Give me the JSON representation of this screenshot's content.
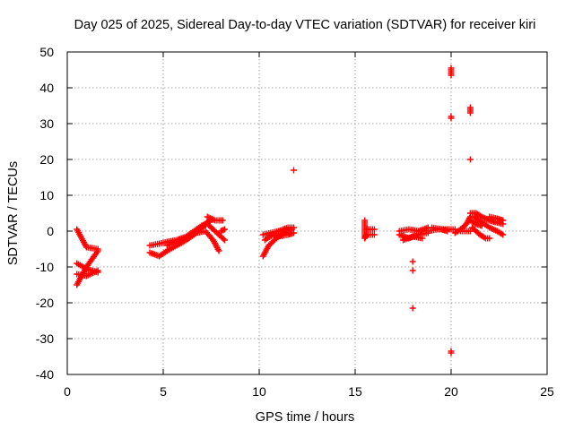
{
  "chart_data": {
    "type": "scatter",
    "title": "Day 025 of 2025, Sidereal Day-to-day VTEC variation (SDTVAR) for receiver kiri",
    "xlabel": "GPS time / hours",
    "ylabel": "SDTVAR / TECUs",
    "xlim": [
      0,
      25
    ],
    "ylim": [
      -40,
      50
    ],
    "xticks": [
      0,
      5,
      10,
      15,
      20,
      25
    ],
    "yticks": [
      -40,
      -30,
      -20,
      -10,
      0,
      10,
      20,
      30,
      40,
      50
    ],
    "xtick_labels": [
      "0",
      "5",
      "10",
      "15",
      "20",
      "25"
    ],
    "ytick_labels": [
      "-40",
      "-30",
      "-20",
      "-10",
      "0",
      "10",
      "20",
      "30",
      "40",
      "50"
    ],
    "grid": true,
    "marker": "plus",
    "color": "#ff0000",
    "segments": [
      {
        "x": [
          0.5,
          1.0,
          1.6
        ],
        "y": [
          0.5,
          -4.5,
          -5.0
        ]
      },
      {
        "x": [
          0.5,
          1.0,
          1.6
        ],
        "y": [
          -15.0,
          -10.0,
          -5.5
        ]
      },
      {
        "x": [
          0.5,
          1.0,
          1.6
        ],
        "y": [
          -9.0,
          -10.5,
          -11.5
        ]
      },
      {
        "x": [
          0.5,
          1.0,
          1.6
        ],
        "y": [
          -12.0,
          -12.5,
          -11.0
        ]
      },
      {
        "x": [
          4.3,
          4.8,
          5.2,
          5.7,
          6.2,
          6.6,
          7.0,
          7.4
        ],
        "y": [
          -4.0,
          -3.5,
          -3.0,
          -2.5,
          -1.5,
          0.0,
          1.5,
          2.5
        ]
      },
      {
        "x": [
          4.3,
          4.8,
          5.2,
          5.7,
          6.2,
          6.6,
          7.0,
          7.4
        ],
        "y": [
          -6.0,
          -7.0,
          -5.5,
          -4.0,
          -2.5,
          -1.0,
          1.0,
          3.0
        ]
      },
      {
        "x": [
          5.2,
          5.7,
          6.2,
          6.7,
          7.2,
          7.6,
          7.9
        ],
        "y": [
          -4.0,
          -3.0,
          -2.0,
          -0.5,
          0.0,
          -2.5,
          -5.5
        ]
      },
      {
        "x": [
          6.3,
          6.8,
          7.3,
          7.7,
          8.0,
          8.2
        ],
        "y": [
          -2.0,
          0.5,
          2.0,
          0.0,
          -1.5,
          -2.5
        ]
      },
      {
        "x": [
          7.3,
          7.7,
          8.1
        ],
        "y": [
          4.0,
          3.0,
          3.0
        ]
      },
      {
        "x": [
          8.0,
          8.2
        ],
        "y": [
          0.0,
          0.5
        ]
      },
      {
        "x": [
          10.2,
          10.5,
          10.9,
          11.3,
          11.7
        ],
        "y": [
          -7.0,
          -4.0,
          -2.0,
          -0.5,
          0.5
        ]
      },
      {
        "x": [
          10.2,
          10.6,
          11.0,
          11.5,
          11.8
        ],
        "y": [
          -1.0,
          -0.5,
          0.0,
          1.0,
          1.0
        ]
      },
      {
        "x": [
          10.3,
          10.7,
          11.0,
          11.5,
          11.8
        ],
        "y": [
          -2.5,
          -1.0,
          -1.5,
          -1.0,
          -0.5
        ]
      },
      {
        "x": [
          11.8
        ],
        "y": [
          17.0
        ]
      },
      {
        "x": [
          15.5,
          15.5,
          15.5,
          15.6,
          16.0
        ],
        "y": [
          3.0,
          1.0,
          -2.0,
          -1.0,
          -1.0
        ]
      },
      {
        "x": [
          15.6,
          16.0
        ],
        "y": [
          0.5,
          0.5
        ]
      },
      {
        "x": [
          17.3,
          17.8,
          18.3,
          18.8
        ],
        "y": [
          -1.0,
          -2.0,
          -1.0,
          -0.5
        ]
      },
      {
        "x": [
          17.3,
          17.8,
          18.3,
          18.8
        ],
        "y": [
          0.0,
          0.5,
          0.0,
          1.0
        ]
      },
      {
        "x": [
          17.5,
          18.0,
          18.5
        ],
        "y": [
          -2.5,
          -1.5,
          -2.0
        ]
      },
      {
        "x": [
          18.8,
          19.3,
          19.8,
          20.2
        ],
        "y": [
          0.0,
          0.5,
          0.5,
          0.5
        ]
      },
      {
        "x": [
          19.0,
          19.5,
          19.8
        ],
        "y": [
          1.0,
          0.5,
          0.0
        ]
      },
      {
        "x": [
          20.2,
          20.5,
          20.8,
          21.0
        ],
        "y": [
          -0.5,
          0.5,
          2.0,
          4.0
        ]
      },
      {
        "x": [
          20.5,
          21.0
        ],
        "y": [
          0.0,
          0.0
        ]
      },
      {
        "x": [
          21.0,
          21.3,
          21.6,
          22.0,
          22.3,
          22.7
        ],
        "y": [
          5.0,
          5.0,
          4.0,
          3.0,
          2.5,
          2.0
        ]
      },
      {
        "x": [
          21.2,
          21.6,
          22.0,
          22.4,
          22.7
        ],
        "y": [
          4.0,
          2.5,
          1.0,
          0.0,
          -1.0
        ]
      },
      {
        "x": [
          21.1,
          21.5,
          21.8,
          22.0
        ],
        "y": [
          1.0,
          -1.0,
          -2.0,
          -2.0
        ]
      },
      {
        "x": [
          22.0,
          22.4,
          22.7
        ],
        "y": [
          4.0,
          3.5,
          3.0
        ]
      },
      {
        "x": [
          21.0,
          21.3,
          21.6
        ],
        "y": [
          3.0,
          2.0,
          1.5
        ]
      },
      {
        "x": [
          18.0
        ],
        "y": [
          -8.5
        ]
      },
      {
        "x": [
          18.0
        ],
        "y": [
          -11.0
        ]
      },
      {
        "x": [
          18.0
        ],
        "y": [
          -21.5
        ]
      },
      {
        "x": [
          20.0,
          20.0,
          20.0,
          20.0
        ],
        "y": [
          45.5,
          44.5,
          44.0,
          43.5
        ]
      },
      {
        "x": [
          20.0,
          20.0
        ],
        "y": [
          32.0,
          31.5
        ]
      },
      {
        "x": [
          20.0,
          20.0
        ],
        "y": [
          -33.5,
          -34.0
        ]
      },
      {
        "x": [
          21.0,
          21.0,
          21.0
        ],
        "y": [
          34.5,
          33.5,
          33.0
        ]
      },
      {
        "x": [
          21.0
        ],
        "y": [
          20.0
        ]
      }
    ]
  }
}
